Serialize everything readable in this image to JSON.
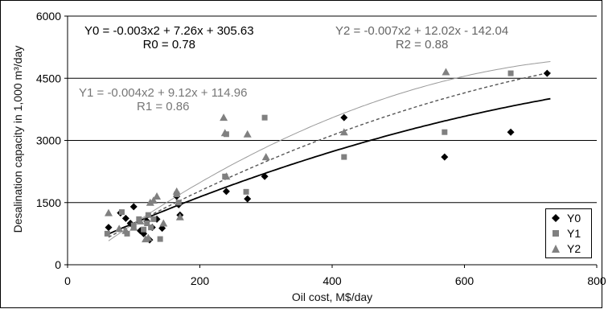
{
  "chart_data": {
    "type": "scatter",
    "xlabel": "Oil cost, M$/day",
    "ylabel": "Desalination capacity in 1,000 m³/day",
    "xlim": [
      0,
      800
    ],
    "ylim": [
      0,
      6000
    ],
    "xticks": [
      0,
      200,
      400,
      600,
      800
    ],
    "yticks": [
      0,
      1500,
      3000,
      4500,
      6000
    ],
    "grid": "horizontal",
    "legend_position": "bottom-right",
    "series": [
      {
        "name": "Y0",
        "marker": "diamond",
        "color": "#000000",
        "points": [
          [
            62,
            900
          ],
          [
            80,
            1250
          ],
          [
            88,
            1120
          ],
          [
            95,
            1000
          ],
          [
            100,
            1400
          ],
          [
            110,
            820
          ],
          [
            115,
            750
          ],
          [
            120,
            1050
          ],
          [
            124,
            600
          ],
          [
            128,
            900
          ],
          [
            135,
            1100
          ],
          [
            143,
            880
          ],
          [
            165,
            1650
          ],
          [
            168,
            1450
          ],
          [
            170,
            1200
          ],
          [
            240,
            1770
          ],
          [
            272,
            1590
          ],
          [
            298,
            2130
          ],
          [
            418,
            3550
          ],
          [
            570,
            2600
          ],
          [
            670,
            3200
          ],
          [
            725,
            4620
          ]
        ]
      },
      {
        "name": "Y1",
        "marker": "square",
        "color": "#808080",
        "points": [
          [
            60,
            750
          ],
          [
            82,
            1270
          ],
          [
            90,
            750
          ],
          [
            100,
            950
          ],
          [
            108,
            1100
          ],
          [
            115,
            850
          ],
          [
            120,
            1000
          ],
          [
            122,
            1200
          ],
          [
            126,
            900
          ],
          [
            130,
            1100
          ],
          [
            140,
            620
          ],
          [
            165,
            1700
          ],
          [
            168,
            1500
          ],
          [
            238,
            2130
          ],
          [
            240,
            3150
          ],
          [
            270,
            1760
          ],
          [
            298,
            3550
          ],
          [
            418,
            2600
          ],
          [
            570,
            3200
          ],
          [
            670,
            4620
          ]
        ]
      },
      {
        "name": "Y2",
        "marker": "triangle",
        "color": "#808080",
        "points": [
          [
            62,
            1250
          ],
          [
            78,
            870
          ],
          [
            88,
            820
          ],
          [
            100,
            900
          ],
          [
            110,
            1050
          ],
          [
            118,
            620
          ],
          [
            122,
            650
          ],
          [
            125,
            1500
          ],
          [
            130,
            1550
          ],
          [
            135,
            1650
          ],
          [
            145,
            1000
          ],
          [
            165,
            1770
          ],
          [
            170,
            1150
          ],
          [
            236,
            3550
          ],
          [
            240,
            2130
          ],
          [
            238,
            3180
          ],
          [
            272,
            3150
          ],
          [
            300,
            2600
          ],
          [
            418,
            3200
          ],
          [
            572,
            4650
          ]
        ]
      }
    ],
    "trendlines": [
      {
        "series": "Y0",
        "a": -0.003,
        "b": 7.26,
        "c": 305.63,
        "style": "solid",
        "color": "#000000",
        "width": 1.8
      },
      {
        "series": "Y1",
        "a": -0.004,
        "b": 9.12,
        "c": 114.96,
        "style": "dashed",
        "color": "#555555",
        "width": 1.4
      },
      {
        "series": "Y2",
        "a": -0.007,
        "b": 12.02,
        "c": -142.04,
        "style": "solid",
        "color": "#9a9a9a",
        "width": 1
      }
    ],
    "annotations": [
      {
        "id": "y0",
        "eq": "Y0 = -0.003x2 + 7.26x + 305.63",
        "r": "R0 = 0.78",
        "color": "#000000"
      },
      {
        "id": "y1",
        "eq": "Y1 = -0.004x2 + 9.12x + 114.96",
        "r": "R1 = 0.86",
        "color": "#777777"
      },
      {
        "id": "y2",
        "eq": "Y2 = -0.007x2 + 12.02x - 142.04",
        "r": "R2 = 0.88",
        "color": "#666666"
      }
    ]
  }
}
